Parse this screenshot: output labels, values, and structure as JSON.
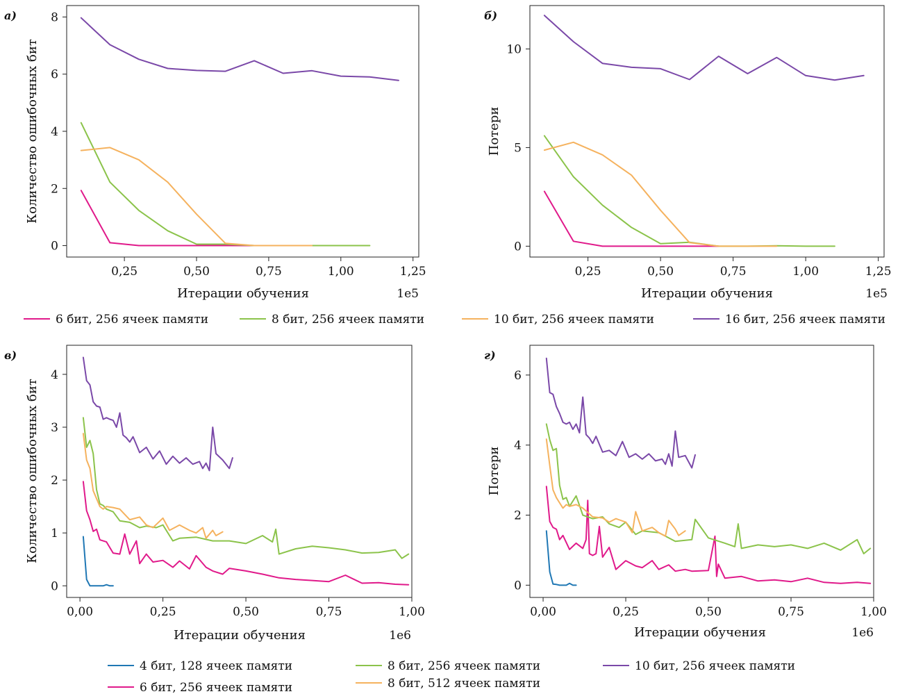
{
  "chart_data": [
    {
      "type": "line",
      "panel_label": "а)",
      "xlabel": "Итерации обучения",
      "ylabel": "Количество ошибочных бит",
      "x_offset_label": "1e5",
      "xlim": [
        0.05,
        1.27
      ],
      "ylim": [
        -0.4,
        8.4
      ],
      "xticks": [
        0.25,
        0.5,
        0.75,
        1.0,
        1.25
      ],
      "xtick_labels": [
        "0,25",
        "0,50",
        "0,75",
        "1,00",
        "1,25"
      ],
      "yticks": [
        0,
        2,
        4,
        6,
        8
      ],
      "ytick_labels": [
        "0",
        "2",
        "4",
        "6",
        "8"
      ],
      "series": [
        {
          "name": "6 бит, 256 ячеек памяти",
          "color": "#e0198a",
          "x": [
            0.1,
            0.2,
            0.3,
            0.4,
            0.5,
            0.6,
            0.7
          ],
          "y": [
            1.93,
            0.1,
            0.0,
            0.0,
            0.0,
            0.0,
            0.0
          ]
        },
        {
          "name": "8 бит, 256 ячеек памяти",
          "color": "#8bc34a",
          "x": [
            0.1,
            0.2,
            0.3,
            0.4,
            0.5,
            0.6,
            0.7,
            0.8,
            0.9,
            1.0,
            1.1
          ],
          "y": [
            4.3,
            2.22,
            1.23,
            0.52,
            0.05,
            0.05,
            0.0,
            0.0,
            0.0,
            0.0,
            0.0
          ]
        },
        {
          "name": "10 бит, 256 ячеек памяти",
          "color": "#f5b25e",
          "x": [
            0.1,
            0.2,
            0.3,
            0.4,
            0.5,
            0.6,
            0.7,
            0.8,
            0.9
          ],
          "y": [
            3.33,
            3.43,
            3.0,
            2.22,
            1.1,
            0.08,
            0.0,
            0.0,
            0.0
          ]
        },
        {
          "name": "16 бит, 256 ячеек памяти",
          "color": "#7a48a8",
          "x": [
            0.1,
            0.2,
            0.3,
            0.4,
            0.5,
            0.6,
            0.7,
            0.8,
            0.9,
            1.0,
            1.1,
            1.2
          ],
          "y": [
            7.97,
            7.03,
            6.52,
            6.2,
            6.13,
            6.1,
            6.47,
            6.03,
            6.12,
            5.93,
            5.9,
            5.78
          ]
        }
      ]
    },
    {
      "type": "line",
      "panel_label": "б)",
      "xlabel": "Итерации обучения",
      "ylabel": "Потери",
      "x_offset_label": "1e5",
      "xlim": [
        0.05,
        1.27
      ],
      "ylim": [
        -0.55,
        12.2
      ],
      "xticks": [
        0.25,
        0.5,
        0.75,
        1.0,
        1.25
      ],
      "xtick_labels": [
        "0,25",
        "0,50",
        "0,75",
        "1,00",
        "1,25"
      ],
      "yticks": [
        0,
        5,
        10
      ],
      "ytick_labels": [
        "0",
        "5",
        "10"
      ],
      "series": [
        {
          "name": "6 бит, 256 ячеек памяти",
          "color": "#e0198a",
          "x": [
            0.1,
            0.2,
            0.3,
            0.4,
            0.5,
            0.6,
            0.7
          ],
          "y": [
            2.78,
            0.25,
            0.0,
            0.0,
            0.0,
            0.0,
            0.0
          ]
        },
        {
          "name": "8 бит, 256 ячеек памяти",
          "color": "#8bc34a",
          "x": [
            0.1,
            0.2,
            0.3,
            0.4,
            0.5,
            0.6,
            0.7,
            0.8,
            0.9,
            1.0,
            1.1
          ],
          "y": [
            5.6,
            3.52,
            2.08,
            0.95,
            0.13,
            0.2,
            0.0,
            0.0,
            0.02,
            0.0,
            0.0
          ]
        },
        {
          "name": "10 бит, 256 ячеек памяти",
          "color": "#f5b25e",
          "x": [
            0.1,
            0.2,
            0.3,
            0.4,
            0.5,
            0.6,
            0.7,
            0.8,
            0.9
          ],
          "y": [
            4.87,
            5.27,
            4.63,
            3.6,
            1.82,
            0.18,
            0.0,
            0.0,
            0.0
          ]
        },
        {
          "name": "16 бит, 256 ячеек памяти",
          "color": "#7a48a8",
          "x": [
            0.1,
            0.2,
            0.3,
            0.4,
            0.5,
            0.6,
            0.7,
            0.8,
            0.9,
            1.0,
            1.1,
            1.2
          ],
          "y": [
            11.7,
            10.37,
            9.27,
            9.07,
            9.0,
            8.45,
            9.63,
            8.75,
            9.57,
            8.65,
            8.42,
            8.65
          ]
        }
      ]
    },
    {
      "type": "line",
      "panel_label": "в)",
      "xlabel": "Итерации обучения",
      "ylabel": "Количество ошибочных бит",
      "x_offset_label": "1e6",
      "xlim": [
        -0.04,
        1.0
      ],
      "ylim": [
        -0.22,
        4.55
      ],
      "xticks": [
        0.0,
        0.25,
        0.5,
        0.75,
        1.0
      ],
      "xtick_labels": [
        "0,00",
        "0,25",
        "0,50",
        "0,75",
        "1,00"
      ],
      "yticks": [
        0,
        1,
        2,
        3,
        4
      ],
      "ytick_labels": [
        "0",
        "1",
        "2",
        "3",
        "4"
      ],
      "series": [
        {
          "name": "4 бит, 128 ячеек памяти",
          "color": "#1f77b4",
          "x": [
            0.01,
            0.02,
            0.03,
            0.04,
            0.05,
            0.06,
            0.07,
            0.08,
            0.09,
            0.1
          ],
          "y": [
            0.93,
            0.12,
            0.0,
            0.0,
            0.0,
            0.0,
            0.0,
            0.02,
            0.0,
            0.0
          ]
        },
        {
          "name": "6 бит, 256 ячеек памяти",
          "color": "#e0198a",
          "x": [
            0.01,
            0.02,
            0.03,
            0.04,
            0.05,
            0.06,
            0.08,
            0.1,
            0.12,
            0.135,
            0.15,
            0.17,
            0.18,
            0.2,
            0.22,
            0.25,
            0.28,
            0.3,
            0.33,
            0.35,
            0.38,
            0.4,
            0.43,
            0.45,
            0.5,
            0.55,
            0.6,
            0.65,
            0.7,
            0.75,
            0.8,
            0.85,
            0.9,
            0.95,
            0.99
          ],
          "y": [
            1.97,
            1.42,
            1.25,
            1.03,
            1.07,
            0.87,
            0.83,
            0.62,
            0.6,
            0.98,
            0.6,
            0.85,
            0.42,
            0.6,
            0.45,
            0.48,
            0.35,
            0.47,
            0.32,
            0.57,
            0.35,
            0.28,
            0.22,
            0.33,
            0.28,
            0.22,
            0.15,
            0.12,
            0.1,
            0.08,
            0.2,
            0.05,
            0.06,
            0.03,
            0.02
          ]
        },
        {
          "name": "8 бит, 256 ячеек памяти",
          "color": "#8bc34a",
          "x": [
            0.01,
            0.02,
            0.03,
            0.04,
            0.05,
            0.06,
            0.07,
            0.08,
            0.1,
            0.12,
            0.15,
            0.18,
            0.2,
            0.23,
            0.25,
            0.28,
            0.3,
            0.35,
            0.4,
            0.45,
            0.5,
            0.55,
            0.58,
            0.59,
            0.6,
            0.65,
            0.7,
            0.75,
            0.8,
            0.85,
            0.9,
            0.95,
            0.97,
            0.99
          ],
          "y": [
            3.18,
            2.62,
            2.75,
            2.5,
            1.82,
            1.55,
            1.52,
            1.45,
            1.4,
            1.23,
            1.2,
            1.1,
            1.13,
            1.1,
            1.15,
            0.85,
            0.9,
            0.92,
            0.85,
            0.85,
            0.8,
            0.95,
            0.83,
            1.07,
            0.6,
            0.7,
            0.75,
            0.72,
            0.68,
            0.62,
            0.63,
            0.68,
            0.52,
            0.6
          ]
        },
        {
          "name": "8 бит, 512 ячеек памяти",
          "color": "#f5b25e",
          "x": [
            0.01,
            0.02,
            0.03,
            0.04,
            0.05,
            0.06,
            0.07,
            0.08,
            0.1,
            0.12,
            0.15,
            0.18,
            0.2,
            0.22,
            0.25,
            0.27,
            0.3,
            0.33,
            0.35,
            0.37,
            0.38,
            0.4,
            0.41,
            0.43
          ],
          "y": [
            2.88,
            2.38,
            2.22,
            1.8,
            1.65,
            1.5,
            1.45,
            1.5,
            1.48,
            1.45,
            1.25,
            1.3,
            1.15,
            1.1,
            1.28,
            1.05,
            1.15,
            1.05,
            1.0,
            1.1,
            0.9,
            1.05,
            0.95,
            1.02
          ]
        },
        {
          "name": "10 бит, 256 ячеек памяти",
          "color": "#7a48a8",
          "x": [
            0.01,
            0.02,
            0.03,
            0.04,
            0.05,
            0.06,
            0.07,
            0.08,
            0.09,
            0.1,
            0.11,
            0.12,
            0.13,
            0.14,
            0.15,
            0.16,
            0.18,
            0.2,
            0.22,
            0.24,
            0.26,
            0.28,
            0.3,
            0.32,
            0.34,
            0.36,
            0.37,
            0.38,
            0.39,
            0.4,
            0.41,
            0.43,
            0.45,
            0.46
          ],
          "y": [
            4.32,
            3.88,
            3.8,
            3.48,
            3.4,
            3.38,
            3.15,
            3.18,
            3.15,
            3.13,
            3.0,
            3.27,
            2.85,
            2.8,
            2.72,
            2.82,
            2.52,
            2.62,
            2.4,
            2.55,
            2.3,
            2.45,
            2.32,
            2.42,
            2.3,
            2.35,
            2.22,
            2.32,
            2.18,
            3.0,
            2.5,
            2.38,
            2.22,
            2.42
          ]
        }
      ]
    },
    {
      "type": "line",
      "panel_label": "г)",
      "xlabel": "Итерации обучения",
      "ylabel": "Потери",
      "x_offset_label": "1e6",
      "xlim": [
        -0.04,
        1.0
      ],
      "ylim": [
        -0.35,
        6.85
      ],
      "xticks": [
        0.0,
        0.25,
        0.5,
        0.75,
        1.0
      ],
      "xtick_labels": [
        "0,00",
        "0,25",
        "0,50",
        "0,75",
        "1,00"
      ],
      "yticks": [
        0,
        2,
        4,
        6
      ],
      "ytick_labels": [
        "0",
        "2",
        "4",
        "6"
      ],
      "series": [
        {
          "name": "4 бит, 128 ячеек памяти",
          "color": "#1f77b4",
          "x": [
            0.01,
            0.02,
            0.03,
            0.04,
            0.05,
            0.06,
            0.07,
            0.08,
            0.09,
            0.1
          ],
          "y": [
            1.55,
            0.38,
            0.03,
            0.02,
            0.0,
            0.0,
            0.0,
            0.05,
            0.0,
            0.0
          ]
        },
        {
          "name": "6 бит, 256 ячеек памяти",
          "color": "#e0198a",
          "x": [
            0.01,
            0.02,
            0.03,
            0.04,
            0.05,
            0.06,
            0.08,
            0.1,
            0.12,
            0.13,
            0.135,
            0.14,
            0.15,
            0.16,
            0.17,
            0.18,
            0.2,
            0.22,
            0.25,
            0.28,
            0.3,
            0.33,
            0.35,
            0.38,
            0.4,
            0.43,
            0.45,
            0.5,
            0.52,
            0.525,
            0.53,
            0.55,
            0.6,
            0.65,
            0.7,
            0.75,
            0.8,
            0.85,
            0.9,
            0.95,
            0.99
          ],
          "y": [
            2.82,
            1.82,
            1.65,
            1.6,
            1.3,
            1.42,
            1.02,
            1.2,
            1.05,
            1.3,
            2.42,
            0.9,
            0.85,
            0.9,
            1.68,
            0.8,
            1.08,
            0.45,
            0.7,
            0.55,
            0.5,
            0.7,
            0.45,
            0.58,
            0.4,
            0.45,
            0.4,
            0.42,
            1.4,
            0.25,
            0.6,
            0.2,
            0.25,
            0.12,
            0.15,
            0.1,
            0.2,
            0.08,
            0.05,
            0.08,
            0.05
          ]
        },
        {
          "name": "8 бит, 256 ячеек памяти",
          "color": "#8bc34a",
          "x": [
            0.01,
            0.02,
            0.03,
            0.04,
            0.05,
            0.06,
            0.07,
            0.08,
            0.1,
            0.12,
            0.15,
            0.18,
            0.2,
            0.23,
            0.25,
            0.28,
            0.3,
            0.35,
            0.4,
            0.45,
            0.46,
            0.5,
            0.55,
            0.58,
            0.59,
            0.6,
            0.65,
            0.7,
            0.75,
            0.8,
            0.85,
            0.9,
            0.95,
            0.97,
            0.99
          ],
          "y": [
            4.6,
            4.15,
            3.85,
            3.9,
            2.85,
            2.45,
            2.5,
            2.25,
            2.55,
            2.0,
            1.9,
            1.95,
            1.75,
            1.65,
            1.8,
            1.45,
            1.55,
            1.5,
            1.25,
            1.3,
            1.88,
            1.35,
            1.2,
            1.1,
            1.75,
            1.05,
            1.15,
            1.1,
            1.15,
            1.05,
            1.2,
            1.0,
            1.3,
            0.9,
            1.05
          ]
        },
        {
          "name": "8 бит, 512 ячеек памяти",
          "color": "#f5b25e",
          "x": [
            0.01,
            0.02,
            0.03,
            0.04,
            0.05,
            0.06,
            0.07,
            0.08,
            0.1,
            0.12,
            0.15,
            0.18,
            0.2,
            0.22,
            0.25,
            0.27,
            0.28,
            0.3,
            0.33,
            0.35,
            0.37,
            0.38,
            0.4,
            0.41,
            0.43
          ],
          "y": [
            4.17,
            3.42,
            2.72,
            2.5,
            2.35,
            2.2,
            2.3,
            2.25,
            2.3,
            2.2,
            1.95,
            1.92,
            1.8,
            1.9,
            1.8,
            1.5,
            2.1,
            1.55,
            1.65,
            1.5,
            1.4,
            1.85,
            1.6,
            1.42,
            1.55
          ]
        },
        {
          "name": "10 бит, 256 ячеек памяти",
          "color": "#7a48a8",
          "x": [
            0.01,
            0.02,
            0.03,
            0.04,
            0.05,
            0.06,
            0.07,
            0.08,
            0.09,
            0.1,
            0.11,
            0.12,
            0.13,
            0.14,
            0.15,
            0.16,
            0.18,
            0.2,
            0.22,
            0.24,
            0.26,
            0.28,
            0.3,
            0.32,
            0.34,
            0.36,
            0.37,
            0.38,
            0.39,
            0.4,
            0.41,
            0.43,
            0.45,
            0.46
          ],
          "y": [
            6.48,
            5.5,
            5.45,
            5.1,
            4.9,
            4.65,
            4.6,
            4.65,
            4.45,
            4.6,
            4.35,
            5.37,
            4.3,
            4.2,
            4.05,
            4.25,
            3.8,
            3.85,
            3.7,
            4.1,
            3.65,
            3.75,
            3.6,
            3.75,
            3.55,
            3.6,
            3.45,
            3.75,
            3.4,
            4.4,
            3.65,
            3.7,
            3.35,
            3.72
          ]
        }
      ]
    }
  ],
  "legends": {
    "top": [
      "6 бит, 256 ячеек памяти",
      "8 бит, 256 ячеек памяти",
      "10 бит, 256 ячеек памяти",
      "16 бит, 256 ячеек памяти"
    ],
    "bottom": [
      "4 бит, 128 ячеек памяти",
      "6 бит, 256 ячеек памяти",
      "8 бит, 256 ячеек памяти",
      "8 бит, 512 ячеек памяти",
      "10 бит, 256 ячеек памяти"
    ]
  },
  "colors": {
    "4 бит": "#1f77b4",
    "6 бит": "#e0198a",
    "8 бит 256": "#8bc34a",
    "10 бит / 8 бит 512": "#f5b25e",
    "16 бит / 10 бит 256": "#7a48a8"
  }
}
